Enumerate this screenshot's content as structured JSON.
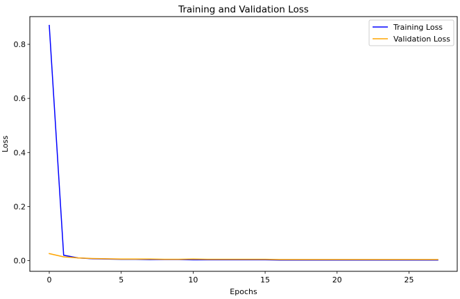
{
  "chart_data": {
    "type": "line",
    "title": "Training and Validation Loss",
    "xlabel": "Epochs",
    "ylabel": "Loss",
    "xlim": [
      -1.35,
      28.35
    ],
    "ylim": [
      -0.0395,
      0.9025
    ],
    "xticks": [
      0,
      5,
      10,
      15,
      20,
      25
    ],
    "yticks": [
      0.0,
      0.2,
      0.4,
      0.6,
      0.8
    ],
    "ytick_labels": [
      "0.0",
      "0.2",
      "0.4",
      "0.6",
      "0.8"
    ],
    "grid": false,
    "legend_position": "top-right",
    "x": [
      0,
      1,
      2,
      3,
      4,
      5,
      6,
      7,
      8,
      9,
      10,
      11,
      12,
      13,
      14,
      15,
      16,
      17,
      18,
      19,
      20,
      21,
      22,
      23,
      24,
      25,
      26,
      27
    ],
    "series": [
      {
        "name": "Training Loss",
        "color": "#0000ff",
        "values": [
          0.87,
          0.02,
          0.01,
          0.007,
          0.006,
          0.005,
          0.005,
          0.004,
          0.004,
          0.004,
          0.003,
          0.003,
          0.003,
          0.003,
          0.003,
          0.003,
          0.002,
          0.002,
          0.002,
          0.002,
          0.002,
          0.002,
          0.002,
          0.002,
          0.002,
          0.002,
          0.002,
          0.002
        ]
      },
      {
        "name": "Validation Loss",
        "color": "#ffa500",
        "values": [
          0.026,
          0.014,
          0.01,
          0.008,
          0.007,
          0.006,
          0.006,
          0.006,
          0.005,
          0.005,
          0.006,
          0.005,
          0.005,
          0.005,
          0.005,
          0.005,
          0.004,
          0.004,
          0.004,
          0.004,
          0.004,
          0.004,
          0.004,
          0.004,
          0.004,
          0.004,
          0.004,
          0.004
        ]
      }
    ]
  }
}
